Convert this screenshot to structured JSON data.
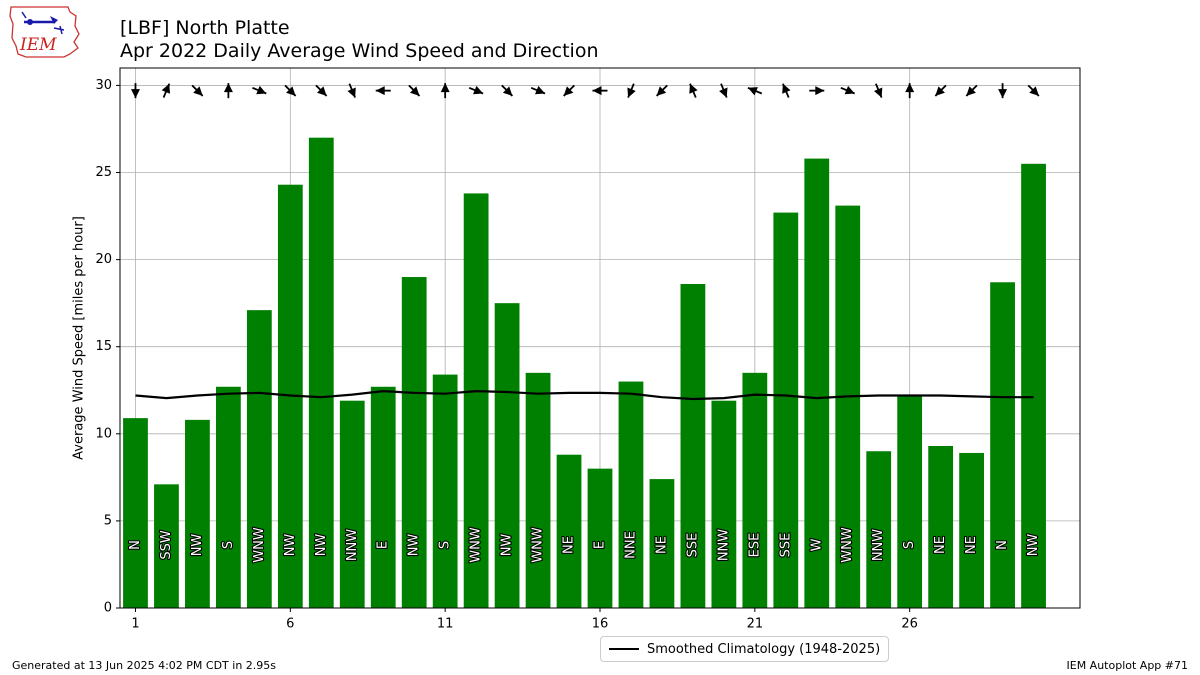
{
  "chart_data": {
    "type": "bar",
    "title": "[LBF] North Platte",
    "subtitle": "Apr 2022 Daily Average Wind Speed and Direction",
    "ylabel": "Average Wind Speed [miles per hour]",
    "xlabel": "",
    "ylim": [
      0,
      31
    ],
    "xlim": [
      0.5,
      31.5
    ],
    "xticks": [
      1,
      6,
      11,
      16,
      21,
      26
    ],
    "yticks": [
      0,
      5,
      10,
      15,
      20,
      25,
      30
    ],
    "grid": true,
    "legend_position": "bottom-center",
    "bar_color": "#008000",
    "days": [
      1,
      2,
      3,
      4,
      5,
      6,
      7,
      8,
      9,
      10,
      11,
      12,
      13,
      14,
      15,
      16,
      17,
      18,
      19,
      20,
      21,
      22,
      23,
      24,
      25,
      26,
      27,
      28,
      29,
      30
    ],
    "values": [
      10.9,
      7.1,
      10.8,
      12.7,
      17.1,
      24.3,
      27.0,
      11.9,
      12.7,
      19.0,
      13.4,
      23.8,
      17.5,
      13.5,
      8.8,
      8.0,
      13.0,
      7.4,
      18.6,
      11.9,
      13.5,
      22.7,
      25.8,
      23.1,
      9.0,
      12.2,
      9.3,
      8.9,
      18.7,
      25.5
    ],
    "directions": [
      "N",
      "SSW",
      "NW",
      "S",
      "WNW",
      "NW",
      "NW",
      "NNW",
      "E",
      "NW",
      "S",
      "WNW",
      "NW",
      "WNW",
      "NE",
      "E",
      "NNE",
      "NE",
      "SSE",
      "NNW",
      "ESE",
      "SSE",
      "W",
      "WNW",
      "NNW",
      "S",
      "NE",
      "NE",
      "N",
      "NW"
    ],
    "series": [
      {
        "name": "Smoothed Climatology (1948-2025)",
        "color": "#000000",
        "values": [
          12.2,
          12.05,
          12.2,
          12.3,
          12.35,
          12.2,
          12.1,
          12.25,
          12.45,
          12.35,
          12.3,
          12.45,
          12.4,
          12.3,
          12.35,
          12.35,
          12.3,
          12.1,
          12.0,
          12.05,
          12.25,
          12.2,
          12.05,
          12.15,
          12.2,
          12.2,
          12.2,
          12.15,
          12.1,
          12.1
        ]
      }
    ]
  },
  "footer": {
    "left": "Generated at 13 Jun 2025 4:02 PM CDT in 2.95s",
    "right": "IEM Autoplot App #71"
  },
  "logo": {
    "text": "IEM",
    "color": "#cc2222"
  }
}
